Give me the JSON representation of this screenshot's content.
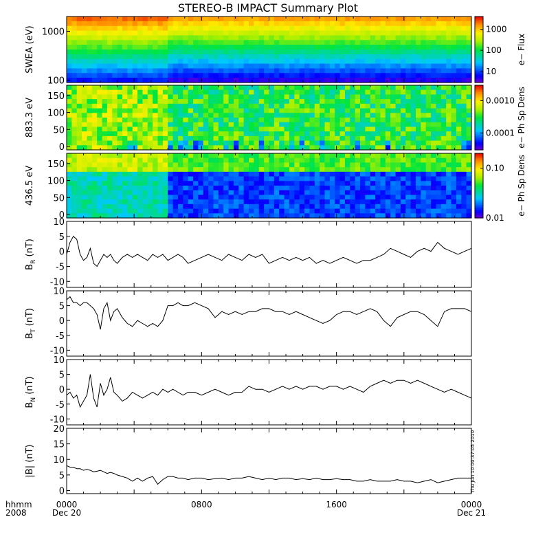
{
  "title": "STEREO-B IMPACT Summary Plot",
  "footer": {
    "hhmm": "hhmm",
    "year": "2008"
  },
  "timestamp": "Thu Jun 10 00:37:05 2010",
  "x_ticks": [
    {
      "hour": 0,
      "label": "0000",
      "sublabel": "Dec 20"
    },
    {
      "hour": 8,
      "label": "0800",
      "sublabel": ""
    },
    {
      "hour": 16,
      "label": "1600",
      "sublabel": ""
    },
    {
      "hour": 24,
      "label": "0000",
      "sublabel": "Dec 21"
    }
  ],
  "chart_data": [
    {
      "type": "heatmap",
      "ylabel": "SWEA (eV)",
      "yscale": "log",
      "ylim": [
        90,
        2000
      ],
      "yticks": [
        {
          "v": 100,
          "label": "100"
        },
        {
          "v": 1000,
          "label": "1000"
        }
      ],
      "colorbar": {
        "label": "e− Flux",
        "scale": "log",
        "lim": [
          3,
          4000
        ],
        "ticks": [
          {
            "v": 10,
            "label": "10"
          },
          {
            "v": 100,
            "label": "100"
          },
          {
            "v": 1000,
            "label": "1000"
          }
        ]
      },
      "colors": {
        "colormap": "rainbow"
      }
    },
    {
      "type": "heatmap",
      "ylabel": "883.3 eV",
      "ylim": [
        -10,
        180
      ],
      "yticks": [
        {
          "v": 0,
          "label": "0"
        },
        {
          "v": 50,
          "label": "50"
        },
        {
          "v": 100,
          "label": "100"
        },
        {
          "v": 150,
          "label": "150"
        }
      ],
      "colorbar": {
        "label": "e− Ph Sp Dens",
        "scale": "log",
        "lim": [
          3e-05,
          0.003
        ],
        "ticks": [
          {
            "v": 0.0001,
            "label": "0.0001"
          },
          {
            "v": 0.001,
            "label": "0.0010"
          }
        ]
      }
    },
    {
      "type": "heatmap",
      "ylabel": "436.5 eV",
      "ylim": [
        -10,
        180
      ],
      "yticks": [
        {
          "v": 0,
          "label": "0"
        },
        {
          "v": 50,
          "label": "50"
        },
        {
          "v": 100,
          "label": "100"
        },
        {
          "v": 150,
          "label": "150"
        }
      ],
      "colorbar": {
        "label": "e− Ph Sp Dens",
        "scale": "log",
        "lim": [
          0.01,
          0.2
        ],
        "ticks": [
          {
            "v": 0.01,
            "label": "0.01"
          },
          {
            "v": 0.1,
            "label": "0.10"
          }
        ]
      }
    },
    {
      "type": "line",
      "ylabel": "B",
      "ylabel_sub": "R",
      "ylabel_unit": " (nT)",
      "ylim": [
        -12,
        10
      ],
      "yticks": [
        -10,
        -5,
        0,
        5,
        10
      ],
      "x": [
        0,
        0.2,
        0.4,
        0.6,
        0.8,
        1.0,
        1.2,
        1.4,
        1.6,
        1.8,
        2.0,
        2.2,
        2.4,
        2.6,
        2.8,
        3.0,
        3.3,
        3.6,
        3.9,
        4.2,
        4.5,
        4.8,
        5.1,
        5.4,
        5.7,
        6.0,
        6.3,
        6.6,
        6.9,
        7.2,
        7.6,
        8.0,
        8.4,
        8.8,
        9.2,
        9.6,
        10.0,
        10.4,
        10.8,
        11.2,
        11.6,
        12.0,
        12.4,
        12.8,
        13.2,
        13.6,
        14.0,
        14.4,
        14.8,
        15.2,
        15.6,
        16.0,
        16.4,
        16.8,
        17.2,
        17.6,
        18.0,
        18.4,
        18.8,
        19.2,
        19.6,
        20.0,
        20.4,
        20.8,
        21.2,
        21.6,
        22.0,
        22.4,
        22.8,
        23.2,
        23.6,
        24.0
      ],
      "values": [
        -1,
        3,
        5,
        4,
        -1,
        -3,
        -2,
        1,
        -4,
        -5,
        -3,
        -1,
        -2,
        -1,
        -3,
        -4,
        -2,
        -1,
        -2,
        -1,
        -2,
        -3,
        -1,
        -2,
        -1,
        -3,
        -2,
        -1,
        -2,
        -4,
        -3,
        -2,
        -1,
        -2,
        -3,
        -1,
        -2,
        -3,
        -1,
        -2,
        -1,
        -4,
        -3,
        -2,
        -3,
        -2,
        -3,
        -2,
        -4,
        -3,
        -4,
        -3,
        -2,
        -3,
        -4,
        -3,
        -3,
        -2,
        -1,
        1,
        0,
        -1,
        -2,
        0,
        1,
        0,
        3,
        1,
        0,
        -1,
        0,
        1
      ]
    },
    {
      "type": "line",
      "ylabel": "B",
      "ylabel_sub": "T",
      "ylabel_unit": " (nT)",
      "ylim": [
        -12,
        10
      ],
      "yticks": [
        -10,
        -5,
        0,
        5,
        10
      ],
      "x": [
        0,
        0.2,
        0.4,
        0.6,
        0.8,
        1.0,
        1.2,
        1.4,
        1.6,
        1.8,
        2.0,
        2.2,
        2.4,
        2.6,
        2.8,
        3.0,
        3.3,
        3.6,
        3.9,
        4.2,
        4.5,
        4.8,
        5.1,
        5.4,
        5.7,
        6.0,
        6.3,
        6.6,
        6.9,
        7.2,
        7.6,
        8.0,
        8.4,
        8.8,
        9.2,
        9.6,
        10.0,
        10.4,
        10.8,
        11.2,
        11.6,
        12.0,
        12.4,
        12.8,
        13.2,
        13.6,
        14.0,
        14.4,
        14.8,
        15.2,
        15.6,
        16.0,
        16.4,
        16.8,
        17.2,
        17.6,
        18.0,
        18.4,
        18.8,
        19.2,
        19.6,
        20.0,
        20.4,
        20.8,
        21.2,
        21.6,
        22.0,
        22.4,
        22.8,
        23.2,
        23.6,
        24.0
      ],
      "values": [
        7,
        8,
        6,
        6,
        5,
        6,
        6,
        5,
        4,
        2,
        -3,
        4,
        6,
        0,
        3,
        4,
        1,
        -1,
        -2,
        0,
        -1,
        -2,
        -1,
        -2,
        0,
        5,
        5,
        6,
        5,
        5,
        6,
        5,
        4,
        1,
        3,
        2,
        3,
        2,
        3,
        3,
        4,
        4,
        3,
        3,
        2,
        3,
        2,
        1,
        0,
        -1,
        0,
        2,
        3,
        3,
        2,
        3,
        4,
        3,
        0,
        -2,
        1,
        2,
        3,
        3,
        2,
        0,
        -2,
        3,
        4,
        4,
        4,
        3
      ]
    },
    {
      "type": "line",
      "ylabel": "B",
      "ylabel_sub": "N",
      "ylabel_unit": " (nT)",
      "ylim": [
        -12,
        10
      ],
      "yticks": [
        -10,
        -5,
        0,
        5,
        10
      ],
      "x": [
        0,
        0.2,
        0.4,
        0.6,
        0.8,
        1.0,
        1.2,
        1.4,
        1.6,
        1.8,
        2.0,
        2.2,
        2.4,
        2.6,
        2.8,
        3.0,
        3.3,
        3.6,
        3.9,
        4.2,
        4.5,
        4.8,
        5.1,
        5.4,
        5.7,
        6.0,
        6.3,
        6.6,
        6.9,
        7.2,
        7.6,
        8.0,
        8.4,
        8.8,
        9.2,
        9.6,
        10.0,
        10.4,
        10.8,
        11.2,
        11.6,
        12.0,
        12.4,
        12.8,
        13.2,
        13.6,
        14.0,
        14.4,
        14.8,
        15.2,
        15.6,
        16.0,
        16.4,
        16.8,
        17.2,
        17.6,
        18.0,
        18.4,
        18.8,
        19.2,
        19.6,
        20.0,
        20.4,
        20.8,
        21.2,
        21.6,
        22.0,
        22.4,
        22.8,
        23.2,
        23.6,
        24.0
      ],
      "values": [
        -2,
        -1,
        -3,
        -2,
        -6,
        -4,
        -2,
        5,
        -3,
        -6,
        2,
        -2,
        0,
        4,
        -1,
        -2,
        -4,
        -3,
        -1,
        -2,
        -3,
        -2,
        -1,
        -2,
        0,
        -1,
        0,
        -1,
        -2,
        -1,
        -1,
        -2,
        -1,
        0,
        -1,
        -2,
        -1,
        -1,
        1,
        0,
        0,
        -1,
        0,
        1,
        0,
        1,
        0,
        1,
        1,
        0,
        1,
        1,
        0,
        1,
        0,
        -1,
        1,
        2,
        3,
        2,
        3,
        3,
        2,
        3,
        2,
        1,
        0,
        -1,
        0,
        -1,
        -2,
        -3
      ]
    },
    {
      "type": "line",
      "ylabel": "|B|",
      "ylabel_sub": "",
      "ylabel_unit": " (nT)",
      "ylim": [
        -1,
        20
      ],
      "yticks": [
        0,
        5,
        10,
        15,
        20
      ],
      "x": [
        0,
        0.2,
        0.4,
        0.6,
        0.8,
        1.0,
        1.2,
        1.4,
        1.6,
        1.8,
        2.0,
        2.2,
        2.4,
        2.6,
        2.8,
        3.0,
        3.3,
        3.6,
        3.9,
        4.2,
        4.5,
        4.8,
        5.1,
        5.4,
        5.7,
        6.0,
        6.3,
        6.6,
        6.9,
        7.2,
        7.6,
        8.0,
        8.4,
        8.8,
        9.2,
        9.6,
        10.0,
        10.4,
        10.8,
        11.2,
        11.6,
        12.0,
        12.4,
        12.8,
        13.2,
        13.6,
        14.0,
        14.4,
        14.8,
        15.2,
        15.6,
        16.0,
        16.4,
        16.8,
        17.2,
        17.6,
        18.0,
        18.4,
        18.8,
        19.2,
        19.6,
        20.0,
        20.4,
        20.8,
        21.2,
        21.6,
        22.0,
        22.4,
        22.8,
        23.2,
        23.6,
        24.0
      ],
      "values": [
        8,
        7.5,
        7.5,
        7,
        7,
        6.5,
        6.8,
        6.5,
        6,
        6.2,
        6.5,
        6,
        5.5,
        5.8,
        5.5,
        5,
        4.5,
        4,
        3,
        4,
        3,
        4,
        4.5,
        2,
        3.5,
        4.5,
        4.5,
        4,
        4,
        3.5,
        4,
        4,
        3.5,
        3.8,
        4,
        3.5,
        4,
        4,
        4.5,
        4,
        3.5,
        4,
        3.5,
        4,
        4,
        3.5,
        3.8,
        3.5,
        4,
        3.5,
        3.5,
        3.8,
        3.5,
        3.5,
        3,
        3,
        3.5,
        3,
        3,
        3,
        3.5,
        3,
        3,
        2.5,
        3,
        3.5,
        2.5,
        3,
        3.5,
        4,
        4,
        4
      ]
    }
  ]
}
